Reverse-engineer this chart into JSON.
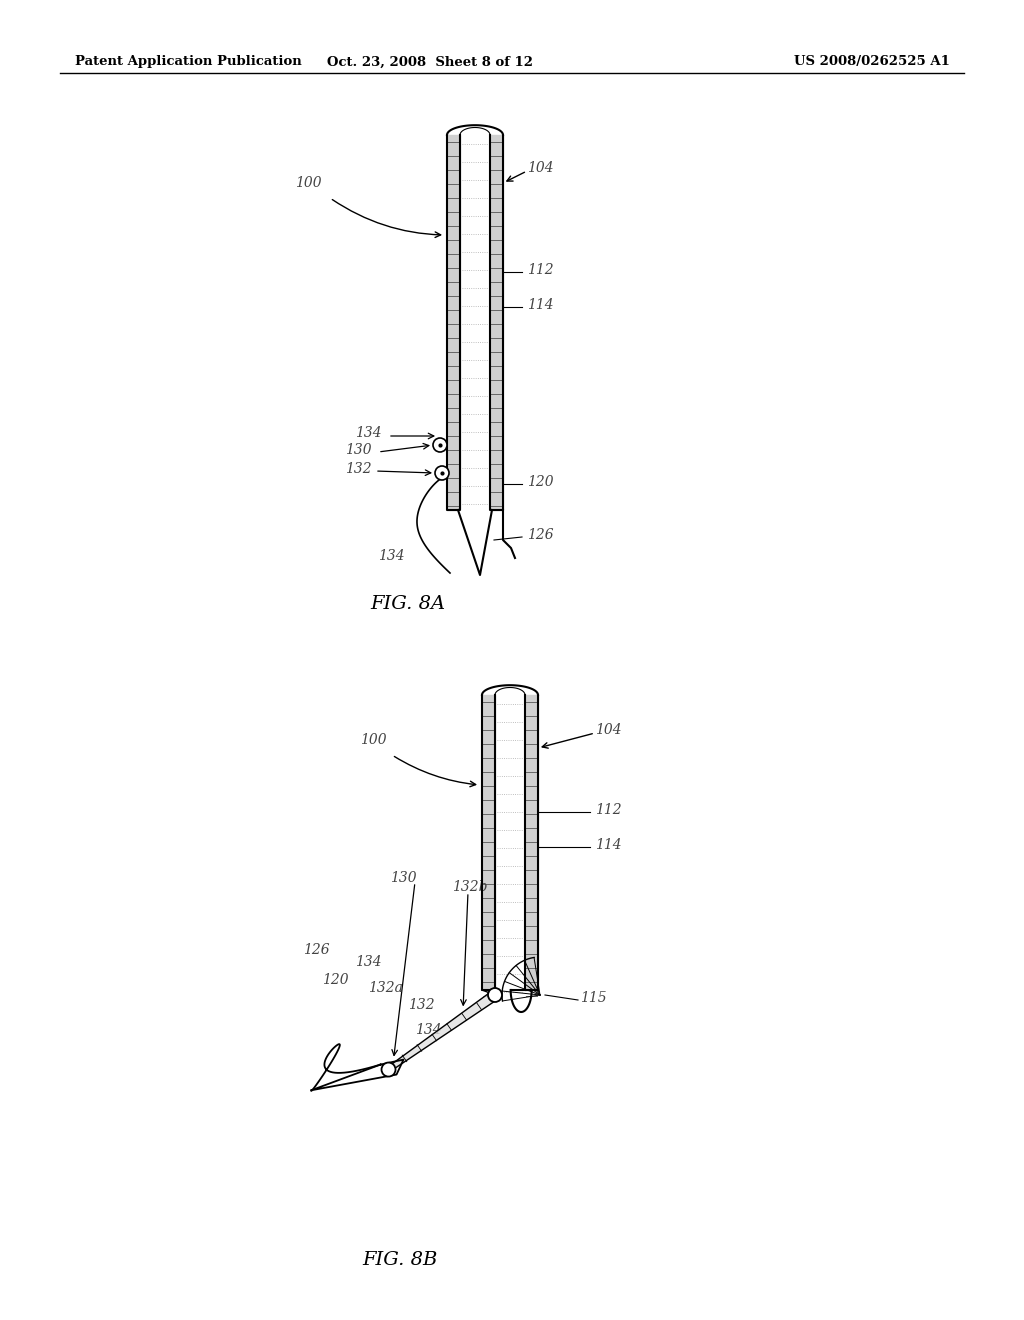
{
  "header_left": "Patent Application Publication",
  "header_center": "Oct. 23, 2008  Sheet 8 of 12",
  "header_right": "US 2008/0262525 A1",
  "fig_label_8a": "FIG. 8A",
  "fig_label_8b": "FIG. 8B",
  "background_color": "#ffffff",
  "line_color": "#000000",
  "label_color": "#444444"
}
